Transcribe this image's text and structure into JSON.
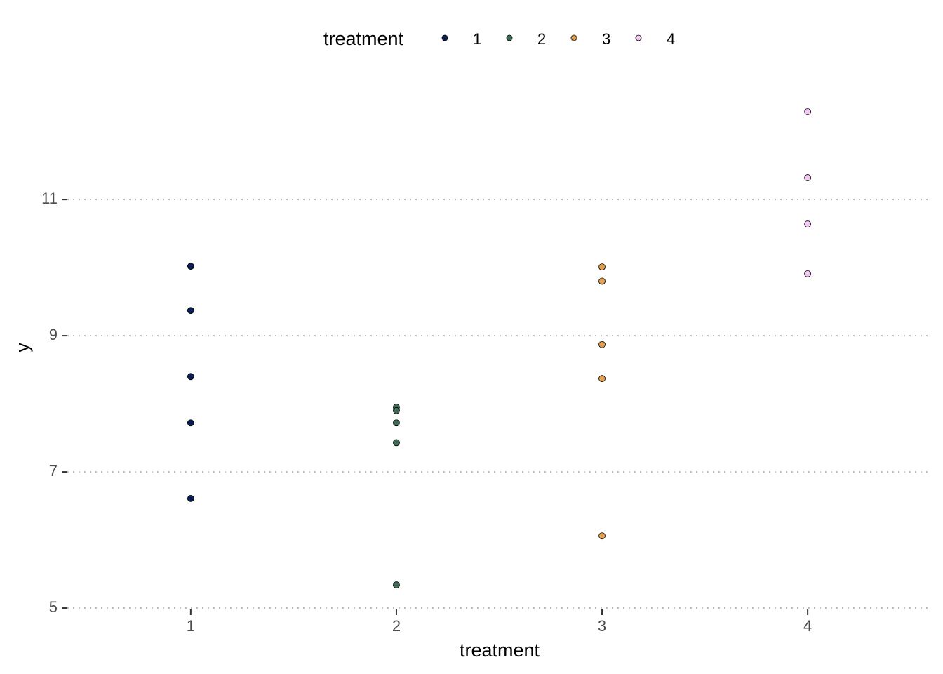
{
  "chart_data": {
    "type": "scatter",
    "x_label": "treatment",
    "y_label": "y",
    "legend_title": "treatment",
    "legend_position": "top",
    "xlim": [
      0.4,
      4.6
    ],
    "xticks": [
      1,
      2,
      3,
      4
    ],
    "ylim": [
      4.98,
      12.62
    ],
    "yticks": [
      5,
      7,
      9,
      11
    ],
    "grid": "horizontal-dotted",
    "series": [
      {
        "name": "1",
        "color": "#0b1d4f",
        "x": [
          1,
          1,
          1,
          1,
          1
        ],
        "values": [
          10.02,
          9.37,
          8.4,
          7.72,
          6.61
        ]
      },
      {
        "name": "2",
        "color": "#3f6b55",
        "x": [
          2,
          2,
          2,
          2,
          2
        ],
        "values": [
          7.95,
          7.9,
          7.72,
          7.43,
          5.34
        ]
      },
      {
        "name": "3",
        "color": "#e0a050",
        "x": [
          3,
          3,
          3,
          3,
          3
        ],
        "values": [
          10.01,
          9.8,
          8.87,
          8.37,
          6.06
        ]
      },
      {
        "name": "4",
        "color": "#f5c8f5",
        "x": [
          4,
          4,
          4,
          4
        ],
        "values": [
          12.29,
          11.32,
          10.64,
          9.91
        ]
      }
    ]
  }
}
